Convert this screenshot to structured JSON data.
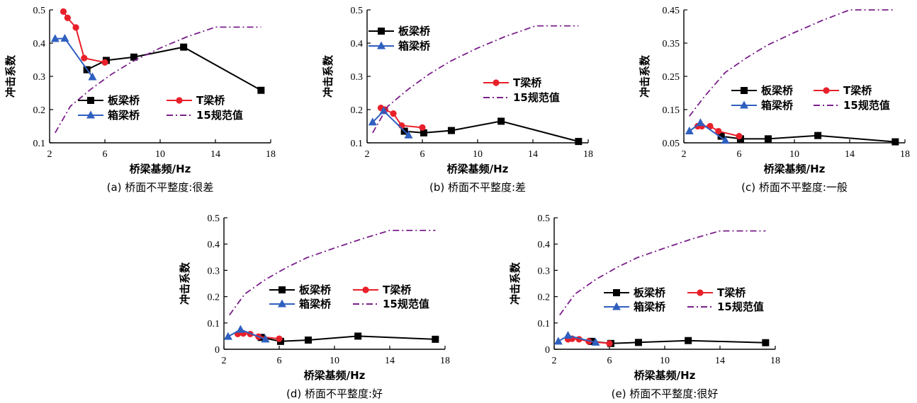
{
  "colors": {
    "plate": "#000000",
    "tbeam": "#e8202a",
    "box": "#2f5fbf",
    "code": "#7a1f8a"
  },
  "chart_data": [
    {
      "type": "line",
      "caption": "(a)   桥面不平整度:很差",
      "xlabel": "桥梁基频/Hz",
      "ylabel": "冲击系数",
      "xlim": [
        2,
        18
      ],
      "ylim": [
        0.1,
        0.5
      ],
      "xticks": [
        2,
        6,
        10,
        14,
        18
      ],
      "yticks": [
        0.1,
        0.2,
        0.3,
        0.4,
        0.5
      ],
      "legend": {
        "columns": [
          [
            "板梁桥",
            "箱梁桥"
          ],
          [
            "T梁桥",
            "15规范值"
          ]
        ],
        "position": "lower-center"
      },
      "series": [
        {
          "name": "板梁桥",
          "marker": "square",
          "color": "#000000",
          "x": [
            4.7,
            6.1,
            8.1,
            11.7,
            17.3
          ],
          "y": [
            0.32,
            0.348,
            0.358,
            0.388,
            0.258
          ]
        },
        {
          "name": "T梁桥",
          "marker": "circle",
          "color": "#e8202a",
          "x": [
            3.0,
            3.3,
            3.9,
            4.5,
            6.0
          ],
          "y": [
            0.495,
            0.476,
            0.447,
            0.355,
            0.342
          ]
        },
        {
          "name": "箱梁桥",
          "marker": "triangle",
          "color": "#2f5fbf",
          "x": [
            2.4,
            3.1,
            5.1
          ],
          "y": [
            0.413,
            0.414,
            0.298
          ]
        },
        {
          "name": "15规范值",
          "marker": "none",
          "dash": "dashdot",
          "color": "#7a1f8a",
          "x": [
            2.4,
            3.5,
            5,
            6.5,
            8,
            10,
            12,
            14,
            17.3
          ],
          "y": [
            0.13,
            0.21,
            0.262,
            0.307,
            0.345,
            0.385,
            0.42,
            0.448,
            0.448
          ]
        }
      ]
    },
    {
      "type": "line",
      "caption": "(b)   桥面不平整度:差",
      "xlabel": "桥梁基频/Hz",
      "ylabel": "冲击系数",
      "xlim": [
        2,
        18
      ],
      "ylim": [
        0.1,
        0.5
      ],
      "xticks": [
        2,
        6,
        10,
        14,
        18
      ],
      "yticks": [
        0.1,
        0.2,
        0.3,
        0.4,
        0.5
      ],
      "legend": {
        "columns": [
          [
            "板梁桥",
            "箱梁桥"
          ],
          [
            "T梁桥",
            "15规范值"
          ]
        ],
        "position": "split"
      },
      "series": [
        {
          "name": "板梁桥",
          "marker": "square",
          "color": "#000000",
          "x": [
            4.7,
            6.1,
            8.1,
            11.7,
            17.3
          ],
          "y": [
            0.135,
            0.13,
            0.137,
            0.165,
            0.104
          ]
        },
        {
          "name": "T梁桥",
          "marker": "circle",
          "color": "#e8202a",
          "x": [
            3.0,
            3.3,
            3.9,
            4.5,
            6.0
          ],
          "y": [
            0.205,
            0.2,
            0.188,
            0.152,
            0.146
          ]
        },
        {
          "name": "箱梁桥",
          "marker": "triangle",
          "color": "#2f5fbf",
          "x": [
            2.4,
            3.2,
            5.0
          ],
          "y": [
            0.162,
            0.196,
            0.123
          ]
        },
        {
          "name": "15规范值",
          "marker": "none",
          "dash": "dashdot",
          "color": "#7a1f8a",
          "x": [
            2.4,
            3.5,
            5,
            6.5,
            8,
            10,
            12,
            14.2,
            17.3
          ],
          "y": [
            0.13,
            0.21,
            0.262,
            0.307,
            0.345,
            0.385,
            0.42,
            0.452,
            0.452
          ]
        }
      ]
    },
    {
      "type": "line",
      "caption": "(c)   桥面不平整度:一般",
      "xlabel": "桥梁基频/Hz",
      "ylabel": "冲击系数",
      "xlim": [
        2,
        18
      ],
      "ylim": [
        0.05,
        0.45
      ],
      "xticks": [
        2,
        6,
        10,
        14,
        18
      ],
      "yticks": [
        0.05,
        0.15,
        0.25,
        0.35,
        0.45
      ],
      "legend": {
        "columns": [
          [
            "板梁桥",
            "箱梁桥"
          ],
          [
            "T梁桥",
            "15规范值"
          ]
        ],
        "position": "center"
      },
      "series": [
        {
          "name": "板梁桥",
          "marker": "square",
          "color": "#000000",
          "x": [
            4.7,
            6.1,
            8.1,
            11.7,
            17.3
          ],
          "y": [
            0.07,
            0.062,
            0.062,
            0.072,
            0.053
          ]
        },
        {
          "name": "T梁桥",
          "marker": "circle",
          "color": "#e8202a",
          "x": [
            3.0,
            3.3,
            3.9,
            4.5,
            6.0
          ],
          "y": [
            0.1,
            0.1,
            0.1,
            0.085,
            0.07
          ]
        },
        {
          "name": "箱梁桥",
          "marker": "triangle",
          "color": "#2f5fbf",
          "x": [
            2.4,
            3.2,
            5.0
          ],
          "y": [
            0.085,
            0.11,
            0.057
          ]
        },
        {
          "name": "15规范值",
          "marker": "none",
          "dash": "dashdot",
          "color": "#7a1f8a",
          "x": [
            2.4,
            3.5,
            5,
            6.5,
            8,
            10,
            12,
            14,
            17.3
          ],
          "y": [
            0.13,
            0.19,
            0.262,
            0.305,
            0.343,
            0.382,
            0.418,
            0.45,
            0.45
          ]
        }
      ]
    },
    {
      "type": "line",
      "caption": "(d)   桥面不平整度:好",
      "xlabel": "桥梁基频/Hz",
      "ylabel": "冲击系数",
      "xlim": [
        2,
        18
      ],
      "ylim": [
        0,
        0.5
      ],
      "xticks": [
        2,
        6,
        10,
        14,
        18
      ],
      "yticks": [
        0,
        0.1,
        0.2,
        0.3,
        0.4,
        0.5
      ],
      "legend": {
        "columns": [
          [
            "板梁桥",
            "箱梁桥"
          ],
          [
            "T梁桥",
            "15规范值"
          ]
        ],
        "position": "center"
      },
      "series": [
        {
          "name": "板梁桥",
          "marker": "square",
          "color": "#000000",
          "x": [
            4.7,
            6.1,
            8.1,
            11.7,
            17.3
          ],
          "y": [
            0.045,
            0.03,
            0.035,
            0.05,
            0.038
          ]
        },
        {
          "name": "T梁桥",
          "marker": "circle",
          "color": "#e8202a",
          "x": [
            3.0,
            3.4,
            3.9,
            4.5,
            6.0
          ],
          "y": [
            0.058,
            0.06,
            0.058,
            0.048,
            0.04
          ]
        },
        {
          "name": "箱梁桥",
          "marker": "triangle",
          "color": "#2f5fbf",
          "x": [
            2.3,
            3.2,
            5.0
          ],
          "y": [
            0.048,
            0.075,
            0.038
          ]
        },
        {
          "name": "15规范值",
          "marker": "none",
          "dash": "dashdot",
          "color": "#7a1f8a",
          "x": [
            2.4,
            3.5,
            5,
            6.5,
            8,
            10,
            12,
            14,
            17.3
          ],
          "y": [
            0.13,
            0.21,
            0.265,
            0.31,
            0.348,
            0.385,
            0.42,
            0.452,
            0.452
          ]
        }
      ]
    },
    {
      "type": "line",
      "caption": "(e)   桥面不平整度:很好",
      "xlabel": "桥梁基频/Hz",
      "ylabel": "冲击系数",
      "xlim": [
        2,
        18
      ],
      "ylim": [
        0,
        0.5
      ],
      "xticks": [
        2,
        6,
        10,
        14,
        18
      ],
      "yticks": [
        0,
        0.1,
        0.2,
        0.3,
        0.4,
        0.5
      ],
      "legend": {
        "columns": [
          [
            "板梁桥",
            "箱梁桥"
          ],
          [
            "T梁桥",
            "15规范值"
          ]
        ],
        "position": "center"
      },
      "series": [
        {
          "name": "板梁桥",
          "marker": "square",
          "color": "#000000",
          "x": [
            4.7,
            6.1,
            8.1,
            11.7,
            17.3
          ],
          "y": [
            0.03,
            0.022,
            0.026,
            0.033,
            0.025
          ]
        },
        {
          "name": "T梁桥",
          "marker": "circle",
          "color": "#e8202a",
          "x": [
            3.0,
            3.3,
            3.8,
            4.5,
            6.0
          ],
          "y": [
            0.038,
            0.04,
            0.038,
            0.03,
            0.022
          ]
        },
        {
          "name": "箱梁桥",
          "marker": "triangle",
          "color": "#2f5fbf",
          "x": [
            2.3,
            3.0,
            5.0
          ],
          "y": [
            0.03,
            0.052,
            0.026
          ]
        },
        {
          "name": "15规范值",
          "marker": "none",
          "dash": "dashdot",
          "color": "#7a1f8a",
          "x": [
            2.4,
            3.5,
            5,
            6.5,
            8,
            10,
            12,
            14,
            17.3
          ],
          "y": [
            0.13,
            0.21,
            0.265,
            0.31,
            0.348,
            0.385,
            0.42,
            0.45,
            0.45
          ]
        }
      ]
    }
  ]
}
